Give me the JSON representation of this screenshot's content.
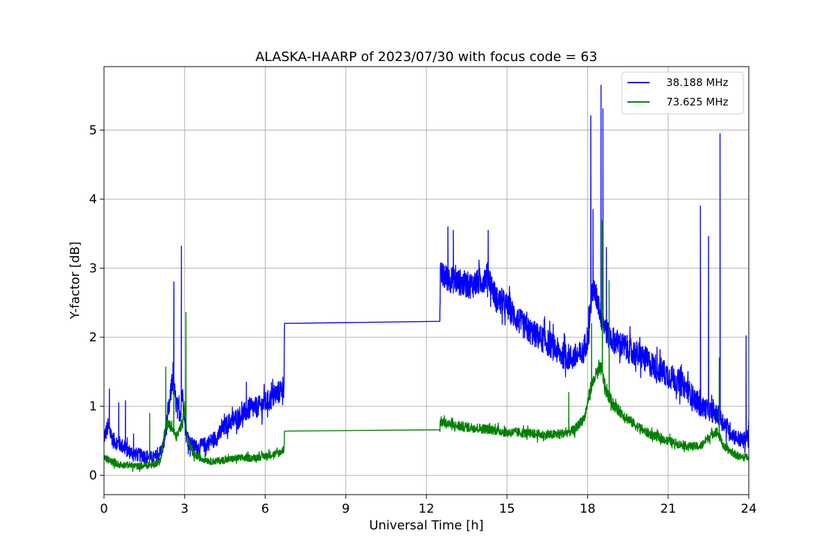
{
  "chart_data": {
    "type": "line",
    "title": "ALASKA-HAARP of 2023/07/30 with focus code = 63",
    "xlabel": "Universal Time [h]",
    "ylabel": "Y-factor [dB]",
    "xlim": [
      0,
      24
    ],
    "ylim": [
      -0.28,
      5.92
    ],
    "xticks": [
      0,
      3,
      6,
      9,
      12,
      15,
      18,
      21,
      24
    ],
    "yticks": [
      0,
      1,
      2,
      3,
      4,
      5
    ],
    "grid": true,
    "legend_position": "top-right",
    "series": [
      {
        "name": "38.188 MHz",
        "color": "#0000ff",
        "x": [
          0.0,
          0.15,
          0.35,
          0.6,
          0.9,
          1.2,
          1.5,
          1.8,
          2.0,
          2.2,
          2.4,
          2.55,
          2.7,
          2.85,
          2.9,
          3.0,
          3.05,
          3.2,
          3.5,
          3.8,
          4.2,
          4.6,
          5.0,
          5.4,
          5.8,
          6.2,
          6.5,
          6.7,
          6.72,
          12.5,
          12.52,
          12.8,
          13.2,
          13.6,
          14.0,
          14.3,
          14.6,
          15.0,
          15.4,
          15.8,
          16.2,
          16.6,
          17.0,
          17.4,
          17.8,
          18.0,
          18.1,
          18.2,
          18.4,
          18.5,
          18.6,
          18.8,
          19.2,
          19.6,
          20.0,
          20.4,
          20.8,
          21.2,
          21.6,
          22.0,
          22.2,
          22.5,
          22.7,
          22.9,
          23.2,
          23.5,
          23.8,
          24.0
        ],
        "y": [
          0.55,
          0.7,
          0.5,
          0.45,
          0.35,
          0.3,
          0.28,
          0.25,
          0.28,
          0.4,
          0.9,
          1.4,
          1.0,
          0.9,
          1.2,
          0.9,
          0.6,
          0.45,
          0.4,
          0.45,
          0.55,
          0.75,
          0.85,
          0.95,
          1.0,
          1.1,
          1.2,
          1.3,
          2.2,
          2.23,
          2.9,
          2.85,
          2.8,
          2.75,
          2.8,
          2.9,
          2.55,
          2.45,
          2.25,
          2.1,
          2.0,
          1.9,
          1.75,
          1.7,
          1.75,
          2.0,
          2.4,
          2.7,
          2.5,
          2.3,
          2.2,
          2.0,
          1.9,
          1.8,
          1.72,
          1.6,
          1.5,
          1.4,
          1.3,
          1.1,
          1.0,
          0.95,
          0.9,
          0.85,
          0.7,
          0.55,
          0.5,
          0.6
        ]
      },
      {
        "name": "73.625 MHz",
        "color": "#008000",
        "x": [
          0.0,
          0.3,
          0.6,
          0.9,
          1.2,
          1.5,
          1.8,
          2.1,
          2.3,
          2.5,
          2.7,
          2.9,
          3.0,
          3.1,
          3.3,
          3.6,
          4.0,
          4.5,
          5.0,
          5.5,
          6.0,
          6.5,
          6.7,
          6.72,
          12.5,
          12.52,
          13.0,
          13.5,
          14.0,
          14.5,
          15.0,
          15.5,
          16.0,
          16.5,
          17.0,
          17.5,
          17.9,
          18.1,
          18.3,
          18.5,
          18.7,
          19.0,
          19.4,
          19.8,
          20.2,
          20.6,
          21.0,
          21.4,
          21.8,
          22.2,
          22.5,
          22.8,
          23.1,
          23.5,
          23.8,
          24.0
        ],
        "y": [
          0.25,
          0.2,
          0.15,
          0.15,
          0.13,
          0.14,
          0.15,
          0.2,
          0.75,
          0.7,
          0.55,
          0.75,
          1.0,
          0.55,
          0.3,
          0.25,
          0.2,
          0.22,
          0.25,
          0.25,
          0.28,
          0.32,
          0.38,
          0.64,
          0.66,
          0.78,
          0.72,
          0.7,
          0.68,
          0.66,
          0.62,
          0.62,
          0.6,
          0.58,
          0.6,
          0.65,
          0.85,
          1.25,
          1.45,
          1.55,
          1.2,
          1.0,
          0.85,
          0.72,
          0.62,
          0.55,
          0.5,
          0.45,
          0.42,
          0.42,
          0.55,
          0.65,
          0.4,
          0.3,
          0.25,
          0.28
        ]
      }
    ],
    "spikes": [
      {
        "series": 0,
        "x": [
          0.2,
          0.55,
          0.8,
          1.1,
          2.6,
          2.88,
          3.05,
          5.3,
          12.8,
          13.0,
          14.3,
          18.12,
          18.2,
          18.5,
          18.57,
          18.7,
          22.2,
          22.5,
          22.93,
          23.9
        ],
        "y": [
          1.25,
          1.05,
          1.08,
          0.6,
          2.8,
          3.32,
          1.87,
          1.35,
          3.6,
          3.55,
          3.55,
          5.21,
          3.85,
          5.65,
          5.31,
          3.3,
          3.9,
          3.46,
          4.95,
          2.02
        ]
      },
      {
        "series": 1,
        "x": [
          1.7,
          2.3,
          2.6,
          3.05,
          17.3,
          18.15,
          18.55,
          18.8,
          22.9
        ],
        "y": [
          0.9,
          1.57,
          1.3,
          2.36,
          1.2,
          2.2,
          3.7,
          2.82,
          1.7
        ]
      }
    ]
  }
}
